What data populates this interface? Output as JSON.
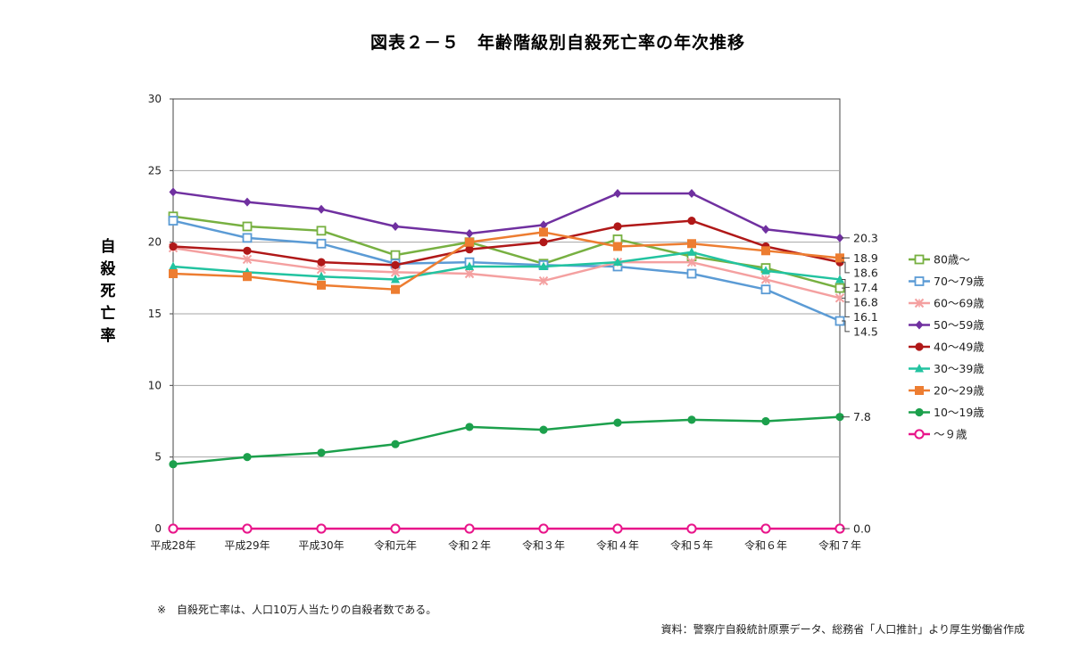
{
  "chart_data": {
    "type": "line",
    "title": "図表２－５　年齢階級別自殺死亡率の年次推移",
    "ylabel": "自殺死亡率",
    "xlabel": "",
    "ylim": [
      0,
      30
    ],
    "yticks": [
      0,
      5,
      10,
      15,
      20,
      25,
      30
    ],
    "grid": true,
    "legend_position": "right",
    "categories": [
      "平成28年",
      "平成29年",
      "平成30年",
      "令和元年",
      "令和２年",
      "令和３年",
      "令和４年",
      "令和５年",
      "令和６年",
      "令和７年"
    ],
    "series": [
      {
        "name": "80歳～",
        "color": "#77b041",
        "marker": "square-open",
        "values": [
          21.8,
          21.1,
          20.8,
          19.1,
          20.0,
          18.5,
          20.2,
          19.0,
          18.2,
          16.8
        ],
        "end_label": "16.8"
      },
      {
        "name": "70～79歳",
        "color": "#5b9bd5",
        "marker": "square-open",
        "values": [
          21.5,
          20.3,
          19.9,
          18.5,
          18.6,
          18.4,
          18.3,
          17.8,
          16.7,
          14.5
        ],
        "end_label": "14.5"
      },
      {
        "name": "60～69歳",
        "color": "#f4a0a0",
        "marker": "x",
        "values": [
          19.6,
          18.8,
          18.1,
          17.9,
          17.8,
          17.3,
          18.6,
          18.6,
          17.4,
          16.1
        ],
        "end_label": "16.1"
      },
      {
        "name": "50～59歳",
        "color": "#7030a0",
        "marker": "diamond",
        "values": [
          23.5,
          22.8,
          22.3,
          21.1,
          20.6,
          21.2,
          23.4,
          23.4,
          20.9,
          20.3
        ],
        "end_label": "20.3"
      },
      {
        "name": "40～49歳",
        "color": "#b01818",
        "marker": "circle",
        "values": [
          19.7,
          19.4,
          18.6,
          18.4,
          19.5,
          20.0,
          21.1,
          21.5,
          19.7,
          18.6
        ],
        "end_label": "18.6"
      },
      {
        "name": "30～39歳",
        "color": "#22c3a0",
        "marker": "triangle",
        "values": [
          18.3,
          17.9,
          17.6,
          17.4,
          18.3,
          18.3,
          18.6,
          19.3,
          18.0,
          17.4
        ],
        "end_label": "17.4"
      },
      {
        "name": "20～29歳",
        "color": "#ed7d31",
        "marker": "square",
        "values": [
          17.8,
          17.6,
          17.0,
          16.7,
          20.0,
          20.7,
          19.7,
          19.9,
          19.4,
          18.9
        ],
        "end_label": "18.9"
      },
      {
        "name": "10～19歳",
        "color": "#1ca04c",
        "marker": "circle",
        "values": [
          4.5,
          5.0,
          5.3,
          5.9,
          7.1,
          6.9,
          7.4,
          7.6,
          7.5,
          7.8
        ],
        "end_label": "7.8"
      },
      {
        "name": "～９歳",
        "color": "#e8158a",
        "marker": "circle-open",
        "values": [
          0.0,
          0.0,
          0.0,
          0.0,
          0.0,
          0.0,
          0.0,
          0.0,
          0.0,
          0.0
        ],
        "end_label": "0.0"
      }
    ]
  },
  "footnote": "※　自殺死亡率は、人口10万人当たりの自殺者数である。",
  "source": "資料：警察庁自殺統計原票データ、総務省「人口推計」より厚生労働省作成"
}
